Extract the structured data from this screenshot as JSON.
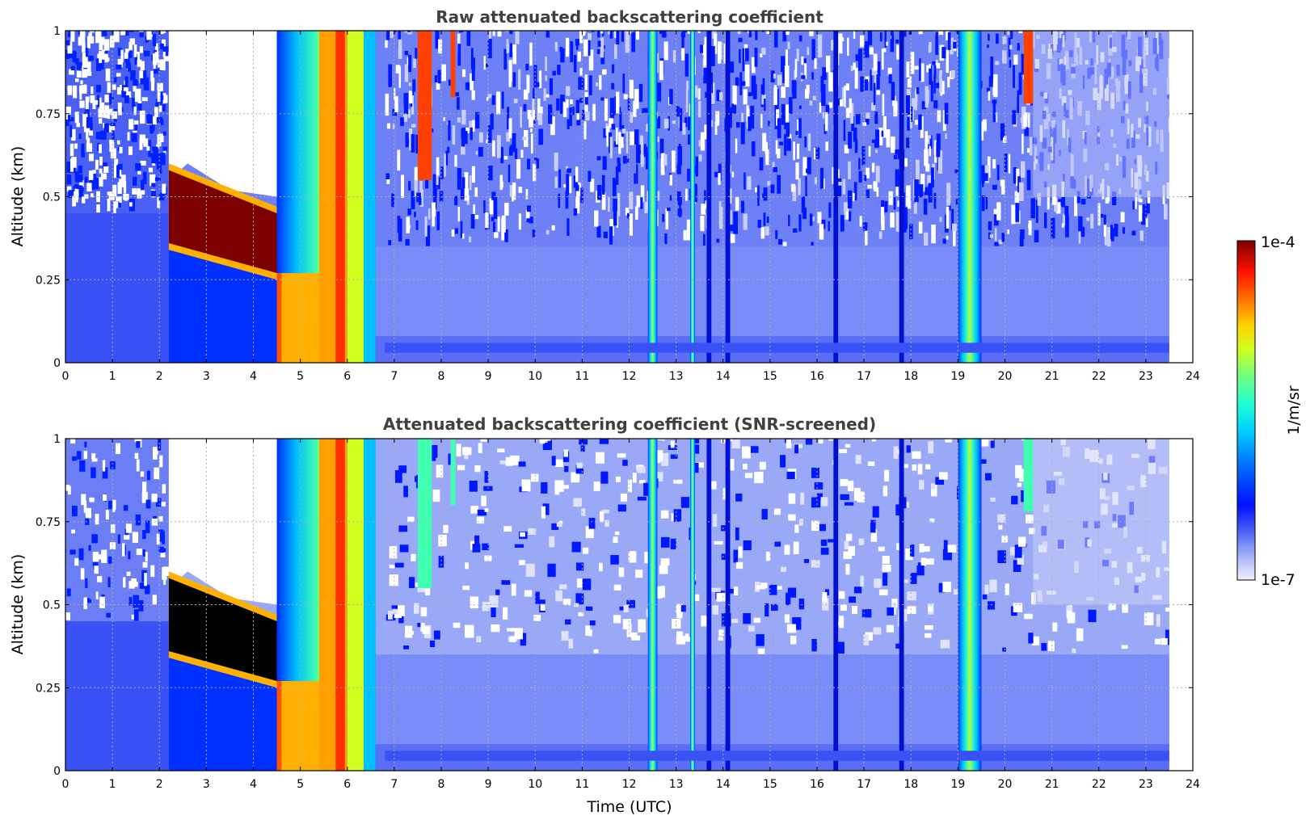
{
  "chart_data": [
    {
      "type": "heatmap",
      "title": "Raw attenuated backscattering coefficient",
      "xlabel": "",
      "ylabel": "Altitude (km)",
      "xlim": [
        0,
        24
      ],
      "ylim": [
        0,
        1
      ],
      "x_ticks": [
        "0",
        "1",
        "2",
        "3",
        "4",
        "5",
        "6",
        "7",
        "8",
        "9",
        "10",
        "11",
        "12",
        "13",
        "14",
        "15",
        "16",
        "17",
        "18",
        "19",
        "20",
        "21",
        "22",
        "23",
        "24"
      ],
      "y_ticks": [
        "0",
        "0.25",
        "0.5",
        "0.75",
        "1"
      ],
      "data_extent_x": [
        0,
        23.5
      ],
      "grid": true,
      "colormap": "jet",
      "features": {
        "aerosol_layer": {
          "x": [
            2.2,
            4.5
          ],
          "top_km": [
            0.58,
            0.45
          ],
          "bottom_km": [
            0.36,
            0.27
          ]
        },
        "sloping_cloud": {
          "x": [
            4.5,
            5.4
          ],
          "bottom_km": [
            0.27,
            0.12
          ]
        },
        "precip_columns": [
          [
            4.5,
            6.6
          ],
          [
            12.4,
            12.6
          ],
          [
            13.3,
            13.4
          ],
          [
            19.0,
            19.5
          ]
        ],
        "thin_streaks": [
          13.7,
          14.1,
          16.4,
          17.8
        ],
        "high_cloud_patches": [
          [
            7.5,
            7.8,
            0.55
          ],
          [
            8.2,
            8.3,
            0.8
          ],
          [
            20.4,
            20.6,
            0.78
          ]
        ]
      }
    },
    {
      "type": "heatmap",
      "title": "Attenuated backscattering coefficient (SNR-screened)",
      "xlabel": "Time (UTC)",
      "ylabel": "Altitude (km)",
      "xlim": [
        0,
        24
      ],
      "ylim": [
        0,
        1
      ],
      "x_ticks": [
        "0",
        "1",
        "2",
        "3",
        "4",
        "5",
        "6",
        "7",
        "8",
        "9",
        "10",
        "11",
        "12",
        "13",
        "14",
        "15",
        "16",
        "17",
        "18",
        "19",
        "20",
        "21",
        "22",
        "23",
        "24"
      ],
      "y_ticks": [
        "0",
        "0.25",
        "0.5",
        "0.75",
        "1"
      ],
      "data_extent_x": [
        0,
        23.5
      ],
      "grid": true,
      "colormap": "jet"
    }
  ],
  "colorbar": {
    "label": "1/m/sr",
    "max_label": "1e-4",
    "min_label": "1e-7",
    "range": [
      1e-07,
      0.0001
    ],
    "scale": "log"
  },
  "colors": {
    "background_blue": "#3a52f5",
    "light_blue": "#8e9ef8",
    "pale": "#dfe2fb",
    "dark_red": "#7d0000",
    "black": "#000000"
  }
}
